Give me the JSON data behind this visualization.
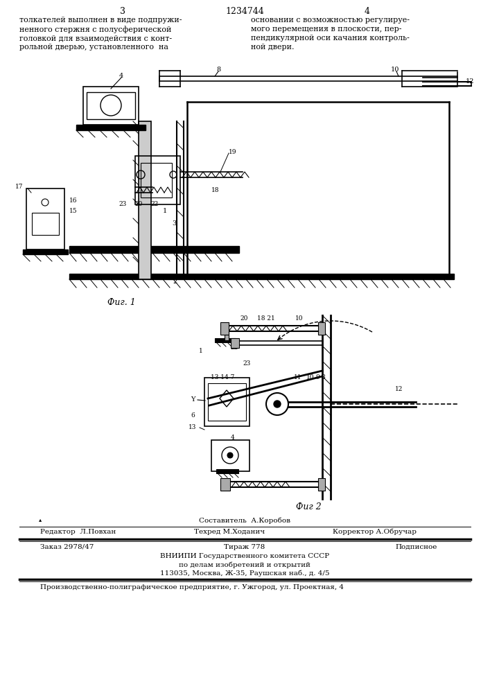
{
  "bg_color": "#ffffff",
  "page_number_left": "3",
  "page_number_center": "1234744",
  "page_number_right": "4",
  "text_left_col": "толкателей выполнен в виде подпружи-\nненного стержня с полусферической\nголовкой для взаимодействия с конт-\nрольной дверью, установленного  на",
  "text_right_col": "основании с возможностью регулируе-\nмого перемещения в плоскости, пер-\nпендикулярной оси качания контроль-\nной двери.",
  "fig1_caption": "Фиг. 1",
  "fig2_caption": "Фиг 2",
  "editor_line": "Редактор  Л.Повхан",
  "composer_line1": "Составитель  А.Коробов",
  "composer_line2": "Техред М.Ходанич",
  "corrector_line": "Корректор А.Обручар",
  "order_line": "Заказ 2978/47",
  "tirazh_line": "Тираж 778",
  "podpisnoe_line": "Подписное",
  "org_line1": "ВНИИПИ Государственного комитета СССР",
  "org_line2": "по делам изобретений и открытий",
  "org_line3": "113035, Москва, Ж-35, Раушская наб., д. 4/5",
  "factory_line": "Производственно-полиграфическое предприятие, г. Ужгород, ул. Проектная, 4",
  "font_size_header": 9,
  "font_size_body": 8,
  "font_size_small": 7.5
}
